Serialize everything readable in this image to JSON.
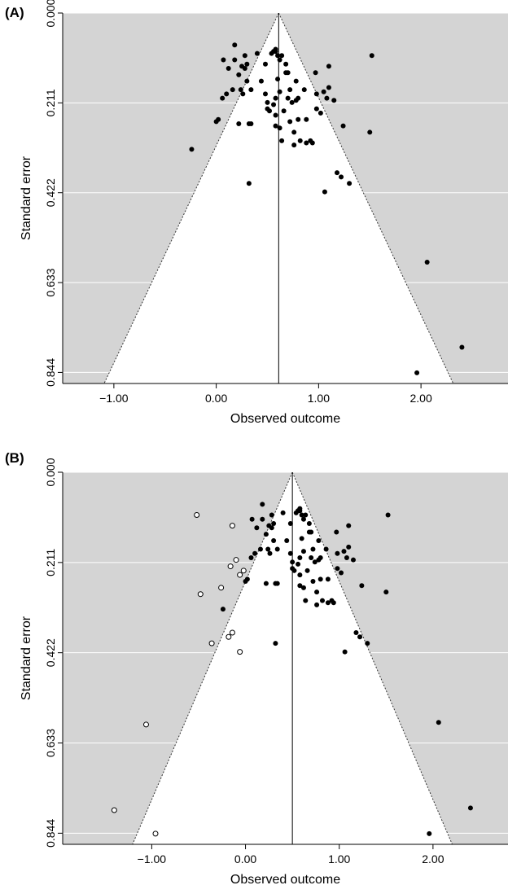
{
  "chart_data": [
    {
      "type": "scatter",
      "panel_label": "(A)",
      "xlabel": "Observed outcome",
      "ylabel": "Standard error",
      "xlim": [
        -1.5,
        2.85
      ],
      "ylim": [
        0.0,
        0.87
      ],
      "y_reversed": true,
      "xticks": [
        -1.0,
        0.0,
        1.0,
        2.0
      ],
      "xtick_labels": [
        "−1.00",
        "0.00",
        "1.00",
        "2.00"
      ],
      "yticks": [
        0.0,
        0.211,
        0.422,
        0.633,
        0.844
      ],
      "ytick_labels": [
        "0.000",
        "0.211",
        "0.422",
        "0.633",
        "0.844"
      ],
      "center": 0.61,
      "funnel_multiplier": 1.96,
      "background_color": "#d4d4d4",
      "funnel_color": "#ffffff",
      "grid": true,
      "series": [
        {
          "filled": true,
          "points": [
            [
              0.07,
              0.11
            ],
            [
              0.12,
              0.13
            ],
            [
              0.18,
              0.075
            ],
            [
              0.18,
              0.11
            ],
            [
              0.22,
              0.145
            ],
            [
              0.25,
              0.125
            ],
            [
              0.28,
              0.1
            ],
            [
              0.24,
              0.18
            ],
            [
              0.28,
              0.13
            ],
            [
              0.3,
              0.16
            ],
            [
              0.34,
              0.26
            ],
            [
              0.22,
              0.26
            ],
            [
              0.1,
              0.19
            ],
            [
              0.06,
              0.2
            ],
            [
              0.02,
              0.25
            ],
            [
              0.0,
              0.255
            ],
            [
              -0.24,
              0.32
            ],
            [
              0.16,
              0.18
            ],
            [
              0.26,
              0.19
            ],
            [
              0.34,
              0.18
            ],
            [
              0.32,
              0.26
            ],
            [
              0.4,
              0.095
            ],
            [
              0.44,
              0.16
            ],
            [
              0.48,
              0.12
            ],
            [
              0.48,
              0.19
            ],
            [
              0.5,
              0.21
            ],
            [
              0.5,
              0.225
            ],
            [
              0.52,
              0.23
            ],
            [
              0.56,
              0.215
            ],
            [
              0.58,
              0.2
            ],
            [
              0.58,
              0.265
            ],
            [
              0.58,
              0.24
            ],
            [
              0.6,
              0.155
            ],
            [
              0.62,
              0.185
            ],
            [
              0.62,
              0.27
            ],
            [
              0.64,
              0.3
            ],
            [
              0.66,
              0.23
            ],
            [
              0.68,
              0.14
            ],
            [
              0.7,
              0.2
            ],
            [
              0.72,
              0.18
            ],
            [
              0.72,
              0.255
            ],
            [
              0.74,
              0.21
            ],
            [
              0.76,
              0.28
            ],
            [
              0.76,
              0.31
            ],
            [
              0.78,
              0.16
            ],
            [
              0.78,
              0.205
            ],
            [
              0.8,
              0.2
            ],
            [
              0.8,
              0.25
            ],
            [
              0.82,
              0.3
            ],
            [
              0.86,
              0.18
            ],
            [
              0.88,
              0.305
            ],
            [
              0.88,
              0.25
            ],
            [
              0.92,
              0.3
            ],
            [
              0.94,
              0.305
            ],
            [
              0.97,
              0.14
            ],
            [
              0.98,
              0.225
            ],
            [
              0.98,
              0.19
            ],
            [
              1.02,
              0.235
            ],
            [
              1.05,
              0.185
            ],
            [
              1.08,
              0.2
            ],
            [
              1.1,
              0.175
            ],
            [
              1.15,
              0.205
            ],
            [
              1.18,
              0.375
            ],
            [
              1.22,
              0.385
            ],
            [
              1.24,
              0.265
            ],
            [
              1.06,
              0.42
            ],
            [
              1.3,
              0.4
            ],
            [
              1.5,
              0.28
            ],
            [
              1.52,
              0.1
            ],
            [
              0.58,
              0.09
            ],
            [
              0.6,
              0.1
            ],
            [
              0.62,
              0.11
            ],
            [
              0.64,
              0.1
            ],
            [
              0.68,
              0.12
            ],
            [
              0.7,
              0.14
            ],
            [
              0.56,
              0.09
            ],
            [
              0.54,
              0.095
            ],
            [
              0.3,
              0.12
            ],
            [
              0.32,
              0.4
            ],
            [
              0.58,
              0.085
            ],
            [
              1.1,
              0.125
            ],
            [
              2.06,
              0.585
            ],
            [
              2.4,
              0.785
            ],
            [
              1.96,
              0.845
            ]
          ]
        }
      ]
    },
    {
      "type": "scatter",
      "panel_label": "(B)",
      "xlabel": "Observed outcome",
      "ylabel": "Standard error",
      "xlim": [
        -1.95,
        2.8
      ],
      "ylim": [
        0.0,
        0.87
      ],
      "y_reversed": true,
      "xticks": [
        -1.0,
        0.0,
        1.0,
        2.0
      ],
      "xtick_labels": [
        "−1.00",
        "0.00",
        "1.00",
        "2.00"
      ],
      "yticks": [
        0.0,
        0.211,
        0.422,
        0.633,
        0.844
      ],
      "ytick_labels": [
        "0.000",
        "0.211",
        "0.422",
        "0.633",
        "0.844"
      ],
      "center": 0.5,
      "funnel_multiplier": 1.96,
      "background_color": "#d4d4d4",
      "funnel_color": "#ffffff",
      "grid": true,
      "series": [
        {
          "filled": true,
          "points": [
            [
              0.07,
              0.11
            ],
            [
              0.12,
              0.13
            ],
            [
              0.18,
              0.075
            ],
            [
              0.18,
              0.11
            ],
            [
              0.22,
              0.145
            ],
            [
              0.25,
              0.125
            ],
            [
              0.28,
              0.1
            ],
            [
              0.24,
              0.18
            ],
            [
              0.28,
              0.13
            ],
            [
              0.3,
              0.16
            ],
            [
              0.34,
              0.26
            ],
            [
              0.22,
              0.26
            ],
            [
              0.1,
              0.19
            ],
            [
              0.06,
              0.2
            ],
            [
              0.02,
              0.25
            ],
            [
              0.0,
              0.255
            ],
            [
              -0.24,
              0.32
            ],
            [
              0.16,
              0.18
            ],
            [
              0.26,
              0.19
            ],
            [
              0.34,
              0.18
            ],
            [
              0.32,
              0.26
            ],
            [
              0.4,
              0.095
            ],
            [
              0.44,
              0.16
            ],
            [
              0.48,
              0.12
            ],
            [
              0.48,
              0.19
            ],
            [
              0.5,
              0.21
            ],
            [
              0.5,
              0.225
            ],
            [
              0.52,
              0.23
            ],
            [
              0.56,
              0.215
            ],
            [
              0.58,
              0.2
            ],
            [
              0.58,
              0.265
            ],
            [
              0.58,
              0.24
            ],
            [
              0.6,
              0.155
            ],
            [
              0.62,
              0.185
            ],
            [
              0.62,
              0.27
            ],
            [
              0.64,
              0.3
            ],
            [
              0.66,
              0.23
            ],
            [
              0.68,
              0.14
            ],
            [
              0.7,
              0.2
            ],
            [
              0.72,
              0.18
            ],
            [
              0.72,
              0.255
            ],
            [
              0.74,
              0.21
            ],
            [
              0.76,
              0.28
            ],
            [
              0.76,
              0.31
            ],
            [
              0.78,
              0.16
            ],
            [
              0.78,
              0.205
            ],
            [
              0.8,
              0.2
            ],
            [
              0.8,
              0.25
            ],
            [
              0.82,
              0.3
            ],
            [
              0.86,
              0.18
            ],
            [
              0.88,
              0.305
            ],
            [
              0.88,
              0.25
            ],
            [
              0.92,
              0.3
            ],
            [
              0.94,
              0.305
            ],
            [
              0.97,
              0.14
            ],
            [
              0.98,
              0.225
            ],
            [
              0.98,
              0.19
            ],
            [
              1.02,
              0.235
            ],
            [
              1.05,
              0.185
            ],
            [
              1.08,
              0.2
            ],
            [
              1.1,
              0.175
            ],
            [
              1.15,
              0.205
            ],
            [
              1.18,
              0.375
            ],
            [
              1.22,
              0.385
            ],
            [
              1.24,
              0.265
            ],
            [
              1.06,
              0.42
            ],
            [
              1.3,
              0.4
            ],
            [
              1.5,
              0.28
            ],
            [
              1.52,
              0.1
            ],
            [
              0.58,
              0.09
            ],
            [
              0.6,
              0.1
            ],
            [
              0.62,
              0.11
            ],
            [
              0.64,
              0.1
            ],
            [
              0.68,
              0.12
            ],
            [
              0.7,
              0.14
            ],
            [
              0.56,
              0.09
            ],
            [
              0.54,
              0.095
            ],
            [
              0.3,
              0.12
            ],
            [
              0.32,
              0.4
            ],
            [
              0.58,
              0.085
            ],
            [
              1.1,
              0.125
            ],
            [
              2.06,
              0.585
            ],
            [
              2.4,
              0.785
            ],
            [
              1.96,
              0.845
            ]
          ]
        },
        {
          "filled": false,
          "points": [
            [
              -0.52,
              0.1
            ],
            [
              -0.14,
              0.125
            ],
            [
              -0.16,
              0.22
            ],
            [
              -0.1,
              0.205
            ],
            [
              -0.06,
              0.24
            ],
            [
              -0.26,
              0.27
            ],
            [
              -0.48,
              0.285
            ],
            [
              -0.14,
              0.375
            ],
            [
              -0.18,
              0.385
            ],
            [
              -0.36,
              0.4
            ],
            [
              -0.06,
              0.42
            ],
            [
              -0.02,
              0.23
            ],
            [
              -1.06,
              0.59
            ],
            [
              -1.4,
              0.79
            ],
            [
              -0.96,
              0.845
            ]
          ]
        }
      ]
    }
  ]
}
